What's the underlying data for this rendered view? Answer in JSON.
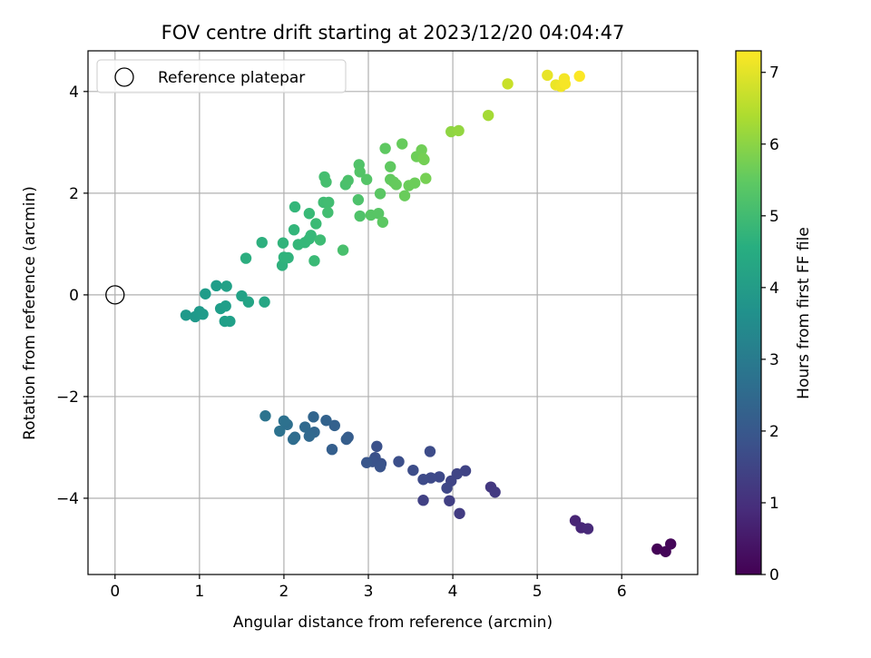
{
  "chart_data": {
    "type": "scatter",
    "title": "FOV centre drift starting at 2023/12/20 04:04:47",
    "xlabel": "Angular distance from reference (arcmin)",
    "ylabel": "Rotation from reference (arcmin)",
    "xlim": [
      -0.32,
      6.9
    ],
    "ylim": [
      -5.5,
      4.8
    ],
    "xticks": [
      0,
      1,
      2,
      3,
      4,
      5,
      6
    ],
    "yticks": [
      -4,
      -2,
      0,
      2,
      4
    ],
    "grid": true,
    "legend": {
      "position": "top-left",
      "entries": [
        {
          "label": "Reference platepar",
          "marker": "open-circle",
          "x": 0,
          "y": 0
        }
      ]
    },
    "colorbar": {
      "label": "Hours from first FF file",
      "colormap": "viridis",
      "range": [
        0,
        7.3
      ],
      "ticks": [
        0,
        1,
        2,
        3,
        4,
        5,
        6,
        7
      ]
    },
    "points": [
      {
        "x": 6.42,
        "y": -5.0,
        "c": 0.05
      },
      {
        "x": 6.52,
        "y": -5.05,
        "c": 0.1
      },
      {
        "x": 6.58,
        "y": -4.9,
        "c": 0.12
      },
      {
        "x": 5.45,
        "y": -4.44,
        "c": 0.75
      },
      {
        "x": 5.52,
        "y": -4.58,
        "c": 0.8
      },
      {
        "x": 5.6,
        "y": -4.6,
        "c": 0.85
      },
      {
        "x": 4.45,
        "y": -3.78,
        "c": 1.2
      },
      {
        "x": 4.5,
        "y": -3.88,
        "c": 1.25
      },
      {
        "x": 4.08,
        "y": -4.3,
        "c": 1.3
      },
      {
        "x": 3.96,
        "y": -4.05,
        "c": 1.35
      },
      {
        "x": 3.65,
        "y": -4.04,
        "c": 1.4
      },
      {
        "x": 4.15,
        "y": -3.46,
        "c": 1.45
      },
      {
        "x": 4.05,
        "y": -3.52,
        "c": 1.5
      },
      {
        "x": 3.98,
        "y": -3.66,
        "c": 1.5
      },
      {
        "x": 3.93,
        "y": -3.8,
        "c": 1.55
      },
      {
        "x": 3.84,
        "y": -3.58,
        "c": 1.6
      },
      {
        "x": 3.74,
        "y": -3.6,
        "c": 1.62
      },
      {
        "x": 3.65,
        "y": -3.63,
        "c": 1.65
      },
      {
        "x": 3.73,
        "y": -3.08,
        "c": 1.68
      },
      {
        "x": 3.53,
        "y": -3.45,
        "c": 1.7
      },
      {
        "x": 3.36,
        "y": -3.28,
        "c": 1.75
      },
      {
        "x": 3.1,
        "y": -2.98,
        "c": 1.8
      },
      {
        "x": 3.08,
        "y": -3.2,
        "c": 1.82
      },
      {
        "x": 3.15,
        "y": -3.32,
        "c": 1.85
      },
      {
        "x": 3.05,
        "y": -3.28,
        "c": 1.87
      },
      {
        "x": 3.14,
        "y": -3.38,
        "c": 1.9
      },
      {
        "x": 2.98,
        "y": -3.3,
        "c": 1.95
      },
      {
        "x": 2.76,
        "y": -2.8,
        "c": 2.1
      },
      {
        "x": 2.74,
        "y": -2.84,
        "c": 2.15
      },
      {
        "x": 2.57,
        "y": -3.04,
        "c": 2.2
      },
      {
        "x": 2.6,
        "y": -2.57,
        "c": 2.25
      },
      {
        "x": 2.5,
        "y": -2.47,
        "c": 2.3
      },
      {
        "x": 2.35,
        "y": -2.4,
        "c": 2.35
      },
      {
        "x": 2.36,
        "y": -2.7,
        "c": 2.4
      },
      {
        "x": 2.3,
        "y": -2.78,
        "c": 2.45
      },
      {
        "x": 2.25,
        "y": -2.6,
        "c": 2.5
      },
      {
        "x": 2.13,
        "y": -2.8,
        "c": 2.55
      },
      {
        "x": 2.11,
        "y": -2.84,
        "c": 2.6
      },
      {
        "x": 2.04,
        "y": -2.55,
        "c": 2.65
      },
      {
        "x": 2.0,
        "y": -2.48,
        "c": 2.7
      },
      {
        "x": 1.95,
        "y": -2.68,
        "c": 2.75
      },
      {
        "x": 1.78,
        "y": -2.38,
        "c": 2.8
      },
      {
        "x": 0.84,
        "y": -0.4,
        "c": 3.9
      },
      {
        "x": 0.95,
        "y": -0.43,
        "c": 3.92
      },
      {
        "x": 1.0,
        "y": -0.33,
        "c": 3.95
      },
      {
        "x": 1.04,
        "y": -0.38,
        "c": 3.97
      },
      {
        "x": 1.07,
        "y": 0.02,
        "c": 4.0
      },
      {
        "x": 1.2,
        "y": 0.18,
        "c": 4.05
      },
      {
        "x": 1.25,
        "y": -0.27,
        "c": 4.07
      },
      {
        "x": 1.31,
        "y": -0.22,
        "c": 4.08
      },
      {
        "x": 1.3,
        "y": -0.52,
        "c": 4.1
      },
      {
        "x": 1.36,
        "y": -0.52,
        "c": 4.12
      },
      {
        "x": 1.32,
        "y": 0.17,
        "c": 4.15
      },
      {
        "x": 1.5,
        "y": -0.02,
        "c": 4.2
      },
      {
        "x": 1.58,
        "y": -0.14,
        "c": 4.25
      },
      {
        "x": 1.77,
        "y": -0.14,
        "c": 4.3
      },
      {
        "x": 1.55,
        "y": 0.72,
        "c": 4.55
      },
      {
        "x": 1.74,
        "y": 1.03,
        "c": 4.6
      },
      {
        "x": 1.98,
        "y": 0.58,
        "c": 4.65
      },
      {
        "x": 2.0,
        "y": 0.74,
        "c": 4.7
      },
      {
        "x": 2.05,
        "y": 0.73,
        "c": 4.72
      },
      {
        "x": 1.99,
        "y": 1.02,
        "c": 4.75
      },
      {
        "x": 2.12,
        "y": 1.28,
        "c": 4.8
      },
      {
        "x": 2.13,
        "y": 1.73,
        "c": 4.82
      },
      {
        "x": 2.17,
        "y": 0.99,
        "c": 4.85
      },
      {
        "x": 2.25,
        "y": 1.03,
        "c": 4.87
      },
      {
        "x": 2.3,
        "y": 1.1,
        "c": 4.88
      },
      {
        "x": 2.32,
        "y": 1.17,
        "c": 4.9
      },
      {
        "x": 2.3,
        "y": 1.6,
        "c": 4.92
      },
      {
        "x": 2.36,
        "y": 0.67,
        "c": 4.95
      },
      {
        "x": 2.38,
        "y": 1.4,
        "c": 4.97
      },
      {
        "x": 2.43,
        "y": 1.08,
        "c": 5.0
      },
      {
        "x": 2.47,
        "y": 1.82,
        "c": 5.02
      },
      {
        "x": 2.53,
        "y": 1.82,
        "c": 5.05
      },
      {
        "x": 2.52,
        "y": 1.62,
        "c": 5.07
      },
      {
        "x": 2.48,
        "y": 2.32,
        "c": 5.1
      },
      {
        "x": 2.5,
        "y": 2.22,
        "c": 5.12
      },
      {
        "x": 2.7,
        "y": 0.88,
        "c": 5.15
      },
      {
        "x": 2.73,
        "y": 2.17,
        "c": 5.17
      },
      {
        "x": 2.76,
        "y": 2.25,
        "c": 5.2
      },
      {
        "x": 2.88,
        "y": 1.87,
        "c": 5.22
      },
      {
        "x": 2.9,
        "y": 1.55,
        "c": 5.25
      },
      {
        "x": 2.89,
        "y": 2.56,
        "c": 5.27
      },
      {
        "x": 2.9,
        "y": 2.42,
        "c": 5.3
      },
      {
        "x": 2.98,
        "y": 2.27,
        "c": 5.32
      },
      {
        "x": 3.03,
        "y": 1.57,
        "c": 5.35
      },
      {
        "x": 3.12,
        "y": 1.6,
        "c": 5.37
      },
      {
        "x": 3.14,
        "y": 1.99,
        "c": 5.4
      },
      {
        "x": 3.17,
        "y": 1.43,
        "c": 5.42
      },
      {
        "x": 3.2,
        "y": 2.88,
        "c": 5.45
      },
      {
        "x": 3.26,
        "y": 2.52,
        "c": 5.47
      },
      {
        "x": 3.26,
        "y": 2.27,
        "c": 5.5
      },
      {
        "x": 3.3,
        "y": 2.22,
        "c": 5.52
      },
      {
        "x": 3.33,
        "y": 2.17,
        "c": 5.55
      },
      {
        "x": 3.4,
        "y": 2.97,
        "c": 5.57
      },
      {
        "x": 3.43,
        "y": 1.95,
        "c": 5.6
      },
      {
        "x": 3.48,
        "y": 2.15,
        "c": 5.62
      },
      {
        "x": 3.55,
        "y": 2.2,
        "c": 5.65
      },
      {
        "x": 3.57,
        "y": 2.72,
        "c": 5.67
      },
      {
        "x": 3.63,
        "y": 2.85,
        "c": 5.7
      },
      {
        "x": 3.66,
        "y": 2.66,
        "c": 5.72
      },
      {
        "x": 3.65,
        "y": 2.68,
        "c": 5.75
      },
      {
        "x": 3.68,
        "y": 2.29,
        "c": 5.77
      },
      {
        "x": 3.98,
        "y": 3.21,
        "c": 6.05
      },
      {
        "x": 4.07,
        "y": 3.23,
        "c": 6.1
      },
      {
        "x": 4.42,
        "y": 3.53,
        "c": 6.3
      },
      {
        "x": 4.65,
        "y": 4.15,
        "c": 6.7
      },
      {
        "x": 5.12,
        "y": 4.32,
        "c": 7.05
      },
      {
        "x": 5.22,
        "y": 4.13,
        "c": 7.1
      },
      {
        "x": 5.28,
        "y": 4.1,
        "c": 7.15
      },
      {
        "x": 5.32,
        "y": 4.25,
        "c": 7.2
      },
      {
        "x": 5.33,
        "y": 4.15,
        "c": 7.22
      },
      {
        "x": 5.5,
        "y": 4.3,
        "c": 7.28
      }
    ]
  }
}
